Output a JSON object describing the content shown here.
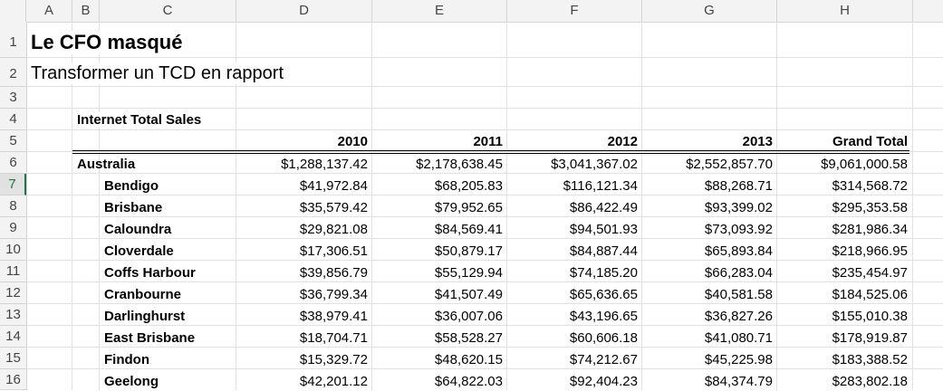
{
  "columns": [
    "A",
    "B",
    "C",
    "D",
    "E",
    "F",
    "G",
    "H"
  ],
  "rows": [
    "1",
    "2",
    "3",
    "4",
    "5",
    "6",
    "7",
    "8",
    "9",
    "10",
    "11",
    "12",
    "13",
    "14",
    "15",
    "16"
  ],
  "active_row": "7",
  "title": "Le CFO masqué",
  "subtitle": "Transformer un TCD en rapport",
  "report_label": "Internet Total Sales",
  "years": [
    "2010",
    "2011",
    "2012",
    "2013",
    "Grand Total"
  ],
  "region": {
    "name": "Australia",
    "values": [
      "$1,288,137.42",
      "$2,178,638.45",
      "$3,041,367.02",
      "$2,552,857.70",
      "$9,061,000.58"
    ]
  },
  "cities": [
    {
      "name": "Bendigo",
      "values": [
        "$41,972.84",
        "$68,205.83",
        "$116,121.34",
        "$88,268.71",
        "$314,568.72"
      ]
    },
    {
      "name": "Brisbane",
      "values": [
        "$35,579.42",
        "$79,952.65",
        "$86,422.49",
        "$93,399.02",
        "$295,353.58"
      ]
    },
    {
      "name": "Caloundra",
      "values": [
        "$29,821.08",
        "$84,569.41",
        "$94,501.93",
        "$73,093.92",
        "$281,986.34"
      ]
    },
    {
      "name": "Cloverdale",
      "values": [
        "$17,306.51",
        "$50,879.17",
        "$84,887.44",
        "$65,893.84",
        "$218,966.95"
      ]
    },
    {
      "name": "Coffs Harbour",
      "values": [
        "$39,856.79",
        "$55,129.94",
        "$74,185.20",
        "$66,283.04",
        "$235,454.97"
      ]
    },
    {
      "name": "Cranbourne",
      "values": [
        "$36,799.34",
        "$41,507.49",
        "$65,636.65",
        "$40,581.58",
        "$184,525.06"
      ]
    },
    {
      "name": "Darlinghurst",
      "values": [
        "$38,979.41",
        "$36,007.06",
        "$43,196.65",
        "$36,827.26",
        "$155,010.38"
      ]
    },
    {
      "name": "East Brisbane",
      "values": [
        "$18,704.71",
        "$58,528.27",
        "$60,606.18",
        "$41,080.71",
        "$178,919.87"
      ]
    },
    {
      "name": "Findon",
      "values": [
        "$15,329.72",
        "$48,620.15",
        "$74,212.67",
        "$45,225.98",
        "$183,388.52"
      ]
    },
    {
      "name": "Geelong",
      "values": [
        "$42,201.12",
        "$64,822.03",
        "$92,404.23",
        "$84,374.79",
        "$283,802.18"
      ]
    }
  ]
}
